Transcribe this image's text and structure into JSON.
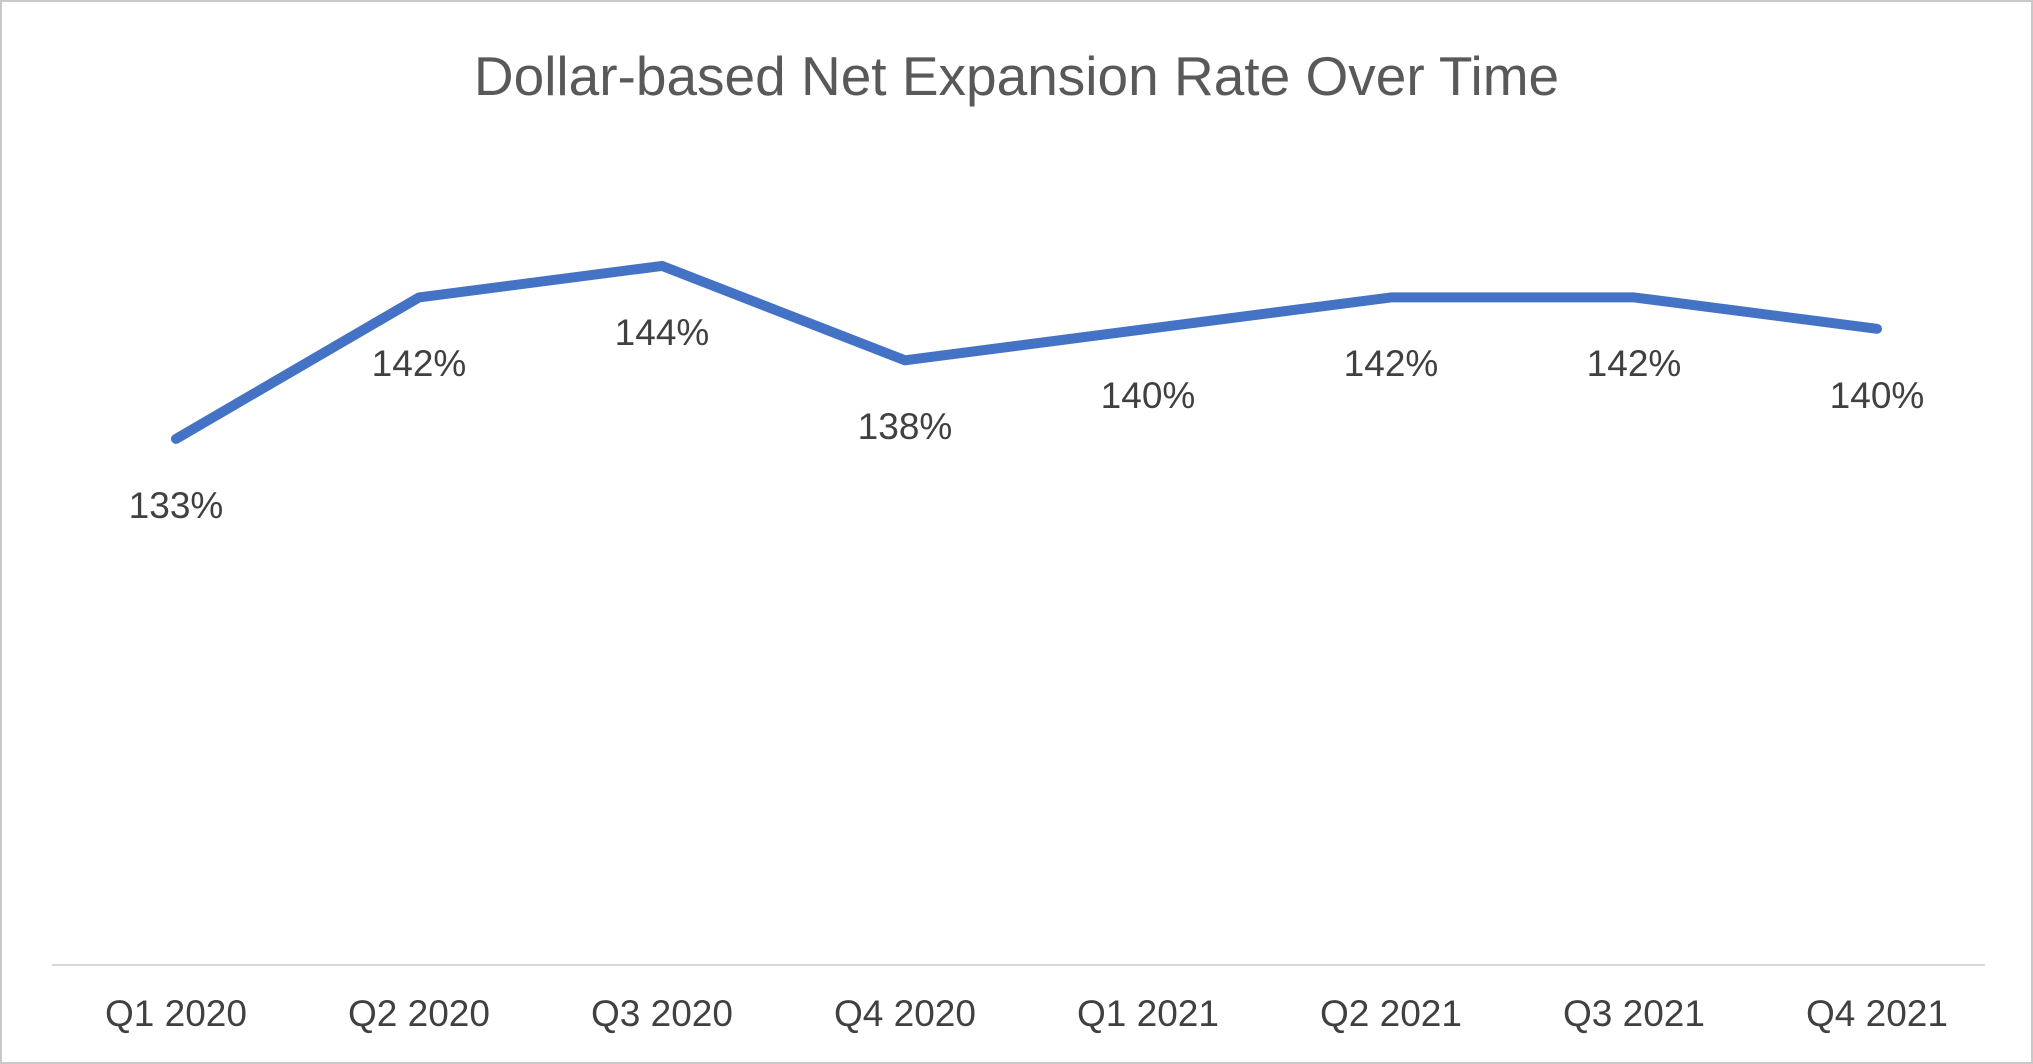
{
  "chart_data": {
    "type": "line",
    "title": "Dollar-based Net Expansion Rate Over Time",
    "categories": [
      "Q1 2020",
      "Q2 2020",
      "Q3 2020",
      "Q4 2020",
      "Q1 2021",
      "Q2 2021",
      "Q3 2021",
      "Q4 2021"
    ],
    "values": [
      133,
      142,
      144,
      138,
      140,
      142,
      142,
      140
    ],
    "data_labels": [
      "133%",
      "142%",
      "144%",
      "138%",
      "140%",
      "142%",
      "142%",
      "140%"
    ],
    "ylim": [
      126,
      148
    ],
    "xlabel": "",
    "ylabel": "",
    "legend": "none",
    "grid": false,
    "line_color": "#4472C4",
    "label_color": "#404040",
    "title_color": "#595959",
    "axis_line_color": "#d9d9d9"
  }
}
